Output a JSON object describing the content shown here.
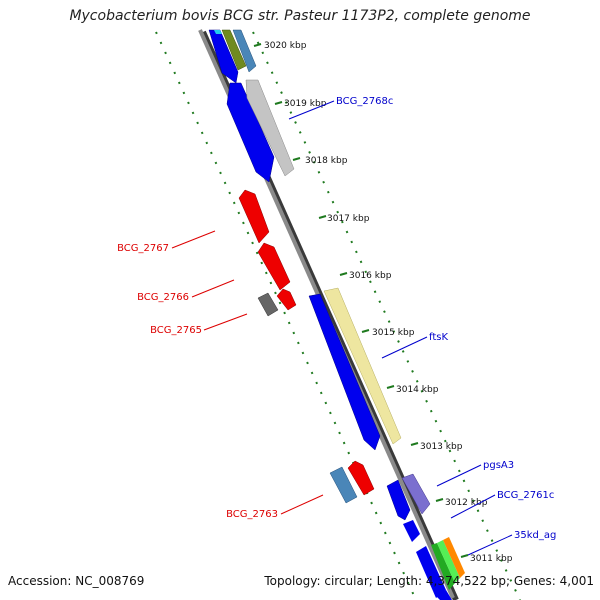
{
  "title": "Mycobacterium bovis BCG str. Pasteur 1173P2, complete genome",
  "footer": {
    "accession": "Accession: NC_008769",
    "summary": "Topology: circular; Length: 4,374,522 bp; Genes: 4,001"
  },
  "scale_labels": [
    "3020 kbp",
    "3019 kbp",
    "3018 kbp",
    "3017 kbp",
    "3016 kbp",
    "3015 kbp",
    "3014 kbp",
    "3013 kbp",
    "3012 kbp",
    "3011 kbp"
  ],
  "colors": {
    "forward_cds": "#0000ee",
    "reverse_cds": "#ee0000",
    "forward_label": "#0000cc",
    "reverse_label": "#dd0000",
    "track_dots": "#1f7a1f",
    "backbone": "#808080"
  },
  "forward_gene_labels": [
    "BCG_2768c",
    "ftsK",
    "pgsA3",
    "BCG_2761c",
    "35kd_ag"
  ],
  "reverse_gene_labels": [
    "BCG_2767",
    "BCG_2766",
    "BCG_2765",
    "BCG_2763"
  ]
}
